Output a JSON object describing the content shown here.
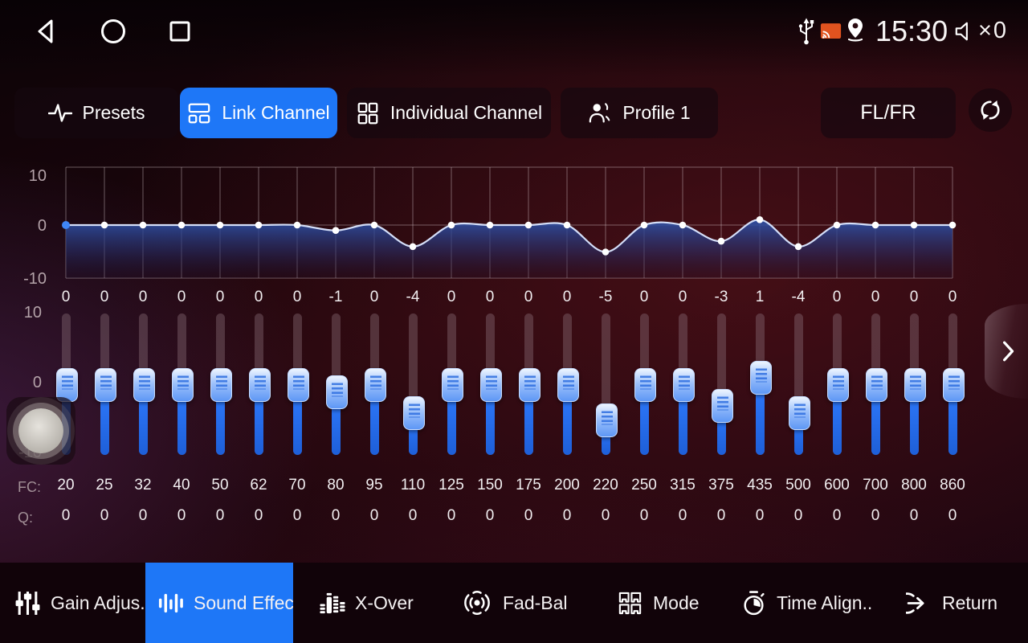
{
  "colors": {
    "accent_blue": "#1E77F7",
    "slider_blue": "#2B72EF",
    "cast_orange": "#E0531F",
    "curve_line": "#d4def8"
  },
  "status_bar": {
    "time": "15:30",
    "volume": "×0"
  },
  "tab_bar": {
    "tabs": [
      {
        "id": "presets",
        "label": "Presets",
        "active": false
      },
      {
        "id": "link-channel",
        "label": "Link Channel",
        "active": true
      },
      {
        "id": "individual-channel",
        "label": "Individual Channel",
        "active": false
      },
      {
        "id": "profile",
        "label": "Profile 1",
        "active": false
      }
    ],
    "channel_select": "FL/FR"
  },
  "eq": {
    "axis_labels": [
      "10",
      "0",
      "-10"
    ],
    "gains": [
      0,
      0,
      0,
      0,
      0,
      0,
      0,
      -1,
      0,
      -4,
      0,
      0,
      0,
      0,
      -5,
      0,
      0,
      -3,
      1,
      -4,
      0,
      0,
      0,
      0
    ],
    "fc_label": "FC:",
    "q_label": "Q:",
    "fc": [
      "20",
      "25",
      "32",
      "40",
      "50",
      "62",
      "70",
      "80",
      "95",
      "110",
      "125",
      "150",
      "175",
      "200",
      "220",
      "250",
      "315",
      "375",
      "435",
      "500",
      "600",
      "700",
      "800",
      "860"
    ],
    "q": [
      "0",
      "0",
      "0",
      "0",
      "0",
      "0",
      "0",
      "0",
      "0",
      "0",
      "0",
      "0",
      "0",
      "0",
      "0",
      "0",
      "0",
      "0",
      "0",
      "0",
      "0",
      "0",
      "0",
      "0"
    ]
  },
  "bottom_nav": {
    "items": [
      {
        "id": "gain-adjust",
        "label": "Gain Adjus..",
        "active": false
      },
      {
        "id": "sound-effect",
        "label": "Sound Effect",
        "active": true
      },
      {
        "id": "x-over",
        "label": "X-Over",
        "active": false
      },
      {
        "id": "fad-bal",
        "label": "Fad-Bal",
        "active": false
      },
      {
        "id": "mode",
        "label": "Mode",
        "active": false
      },
      {
        "id": "time-align",
        "label": "Time Align..",
        "active": false
      },
      {
        "id": "return",
        "label": "Return",
        "active": false
      }
    ]
  }
}
